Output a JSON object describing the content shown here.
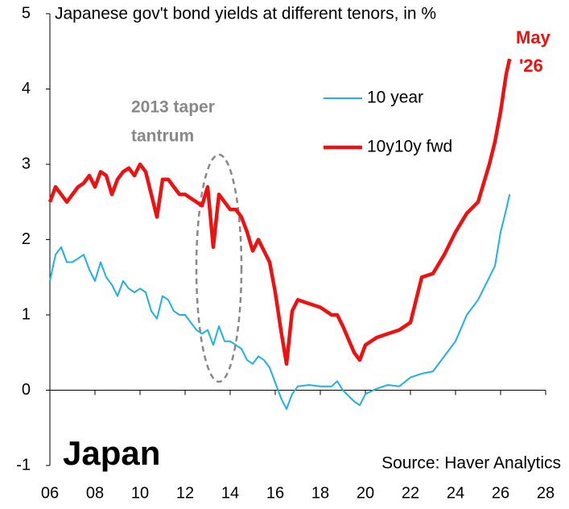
{
  "chart_data": {
    "type": "line",
    "title": "Japanese gov't bond yields at different tenors, in %",
    "annotations": [
      "2013 taper",
      "tantrum",
      "May",
      "'26",
      "Japan",
      "Source: Haver Analytics"
    ],
    "x": [
      2006.0,
      2006.25,
      2006.5,
      2006.75,
      2007.0,
      2007.25,
      2007.5,
      2007.75,
      2008.0,
      2008.25,
      2008.5,
      2008.75,
      2009.0,
      2009.25,
      2009.5,
      2009.75,
      2010.0,
      2010.25,
      2010.5,
      2010.75,
      2011.0,
      2011.25,
      2011.5,
      2011.75,
      2012.0,
      2012.25,
      2012.5,
      2012.75,
      2013.0,
      2013.25,
      2013.5,
      2013.75,
      2014.0,
      2014.25,
      2014.5,
      2014.75,
      2015.0,
      2015.25,
      2015.5,
      2015.75,
      2016.0,
      2016.25,
      2016.5,
      2016.75,
      2017.0,
      2017.5,
      2018.0,
      2018.5,
      2018.75,
      2019.0,
      2019.5,
      2019.75,
      2020.0,
      2020.5,
      2021.0,
      2021.5,
      2022.0,
      2022.5,
      2023.0,
      2023.5,
      2024.0,
      2024.5,
      2025.0,
      2025.5,
      2025.75,
      2026.0,
      2026.25,
      2026.4
    ],
    "series": [
      {
        "name": "10 year",
        "color": "#1fb0e6",
        "values": [
          1.45,
          1.8,
          1.9,
          1.7,
          1.7,
          1.75,
          1.8,
          1.6,
          1.45,
          1.7,
          1.5,
          1.4,
          1.25,
          1.45,
          1.35,
          1.3,
          1.35,
          1.3,
          1.05,
          0.95,
          1.25,
          1.2,
          1.05,
          1.0,
          1.0,
          0.9,
          0.8,
          0.75,
          0.8,
          0.6,
          0.85,
          0.65,
          0.65,
          0.6,
          0.55,
          0.4,
          0.35,
          0.45,
          0.4,
          0.3,
          0.1,
          -0.1,
          -0.25,
          -0.05,
          0.05,
          0.07,
          0.05,
          0.05,
          0.12,
          0.0,
          -0.15,
          -0.2,
          -0.05,
          0.02,
          0.07,
          0.05,
          0.17,
          0.22,
          0.25,
          0.45,
          0.65,
          1.0,
          1.2,
          1.5,
          1.65,
          2.1,
          2.4,
          2.6
        ]
      },
      {
        "name": "10y10y fwd",
        "color": "#ee1111",
        "values": [
          2.5,
          2.7,
          2.6,
          2.5,
          2.6,
          2.7,
          2.75,
          2.85,
          2.7,
          2.9,
          2.85,
          2.6,
          2.8,
          2.9,
          2.95,
          2.85,
          3.0,
          2.9,
          2.6,
          2.3,
          2.8,
          2.8,
          2.7,
          2.6,
          2.6,
          2.55,
          2.5,
          2.45,
          2.7,
          1.9,
          2.6,
          2.5,
          2.4,
          2.4,
          2.3,
          2.1,
          1.85,
          2.0,
          1.85,
          1.7,
          1.3,
          0.8,
          0.35,
          1.05,
          1.2,
          1.15,
          1.1,
          1.0,
          1.0,
          0.85,
          0.5,
          0.4,
          0.6,
          0.7,
          0.75,
          0.8,
          0.9,
          1.5,
          1.55,
          1.8,
          2.1,
          2.35,
          2.5,
          3.0,
          3.3,
          3.7,
          4.2,
          4.4
        ]
      }
    ],
    "xlim": [
      2006,
      2028
    ],
    "xticks": [
      {
        "value": 2006,
        "label": "06"
      },
      {
        "value": 2008,
        "label": "08"
      },
      {
        "value": 2010,
        "label": "10"
      },
      {
        "value": 2012,
        "label": "12"
      },
      {
        "value": 2014,
        "label": "14"
      },
      {
        "value": 2016,
        "label": "16"
      },
      {
        "value": 2018,
        "label": "18"
      },
      {
        "value": 2020,
        "label": "20"
      },
      {
        "value": 2022,
        "label": "22"
      },
      {
        "value": 2024,
        "label": "24"
      },
      {
        "value": 2026,
        "label": "26"
      },
      {
        "value": 2028,
        "label": "28"
      }
    ],
    "ylim": [
      -1,
      5
    ],
    "yticks": [
      -1,
      0,
      1,
      2,
      3,
      4,
      5
    ],
    "grid": false
  }
}
